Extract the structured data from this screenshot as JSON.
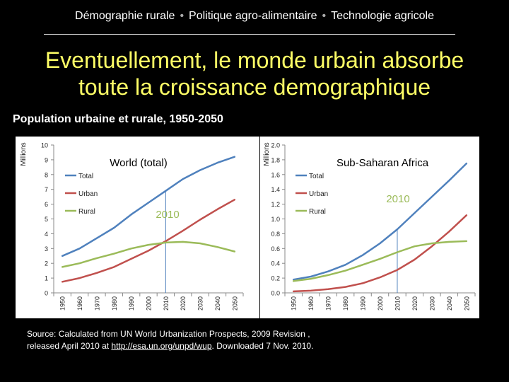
{
  "header": {
    "nav": [
      "Démographie rurale",
      "Politique agro-alimentaire",
      "Technologie agricole"
    ],
    "title_line1": "Eventuellement, le monde urbain absorbe",
    "title_line2": "toute la croissance demographique",
    "subtitle": "Population urbaine et rurale, 1950-2050"
  },
  "source": {
    "line1": "Source: Calculated  from UN World Urbanization Prospects, 2009 Revision ,",
    "line2_prefix": "released April 2010 at ",
    "link": "http://esa.un.org/unpd/wup",
    "line2_suffix": ".  Downloaded 7 Nov. 2010."
  },
  "colors": {
    "total": "#4f81bd",
    "urban": "#c0504d",
    "rural": "#9bbb59",
    "marker": "#4f81bd",
    "marker_label": "#9bbb59"
  },
  "chart_data": [
    {
      "type": "line",
      "title": "World (total)",
      "ylabel": "",
      "ylim": [
        0,
        10
      ],
      "yticks": [
        "0",
        "1",
        "2",
        "3",
        "4",
        "5",
        "6",
        "7",
        "8",
        "9",
        "10"
      ],
      "x": [
        "1950",
        "1960",
        "1970",
        "1980",
        "1990",
        "2000",
        "2010",
        "2020",
        "2030",
        "2040",
        "2050"
      ],
      "legend": [
        "Total",
        "Urban",
        "Rural"
      ],
      "marker": {
        "x": "2010",
        "label": "2010"
      },
      "series": [
        {
          "name": "Total",
          "values": [
            2.5,
            3.0,
            3.7,
            4.4,
            5.3,
            6.1,
            6.9,
            7.7,
            8.3,
            8.8,
            9.2
          ]
        },
        {
          "name": "Urban",
          "values": [
            0.75,
            1.0,
            1.35,
            1.75,
            2.3,
            2.85,
            3.5,
            4.2,
            4.95,
            5.65,
            6.3
          ]
        },
        {
          "name": "Rural",
          "values": [
            1.75,
            2.0,
            2.35,
            2.65,
            3.0,
            3.25,
            3.4,
            3.45,
            3.35,
            3.1,
            2.8
          ]
        }
      ]
    },
    {
      "type": "line",
      "title": "Sub-Saharan Africa",
      "ylabel": "Millions",
      "ylim": [
        0,
        2.0
      ],
      "yticks": [
        "0.0",
        "0.2",
        "0.4",
        "0.6",
        "0.8",
        "1.0",
        "1.2",
        "1.4",
        "1.6",
        "1.8",
        "2.0"
      ],
      "x": [
        "1950",
        "1960",
        "1970",
        "1980",
        "1990",
        "2000",
        "2010",
        "2020",
        "2030",
        "2040",
        "2050"
      ],
      "legend": [
        "Total",
        "Urban",
        "Rural"
      ],
      "marker": {
        "x": "2010",
        "label": "2010"
      },
      "series": [
        {
          "name": "Total",
          "values": [
            0.18,
            0.22,
            0.29,
            0.38,
            0.51,
            0.67,
            0.86,
            1.08,
            1.3,
            1.52,
            1.75
          ]
        },
        {
          "name": "Urban",
          "values": [
            0.02,
            0.03,
            0.05,
            0.08,
            0.13,
            0.21,
            0.31,
            0.45,
            0.63,
            0.83,
            1.05
          ]
        },
        {
          "name": "Rural",
          "values": [
            0.16,
            0.19,
            0.24,
            0.3,
            0.38,
            0.46,
            0.55,
            0.63,
            0.67,
            0.69,
            0.7
          ]
        }
      ]
    }
  ]
}
